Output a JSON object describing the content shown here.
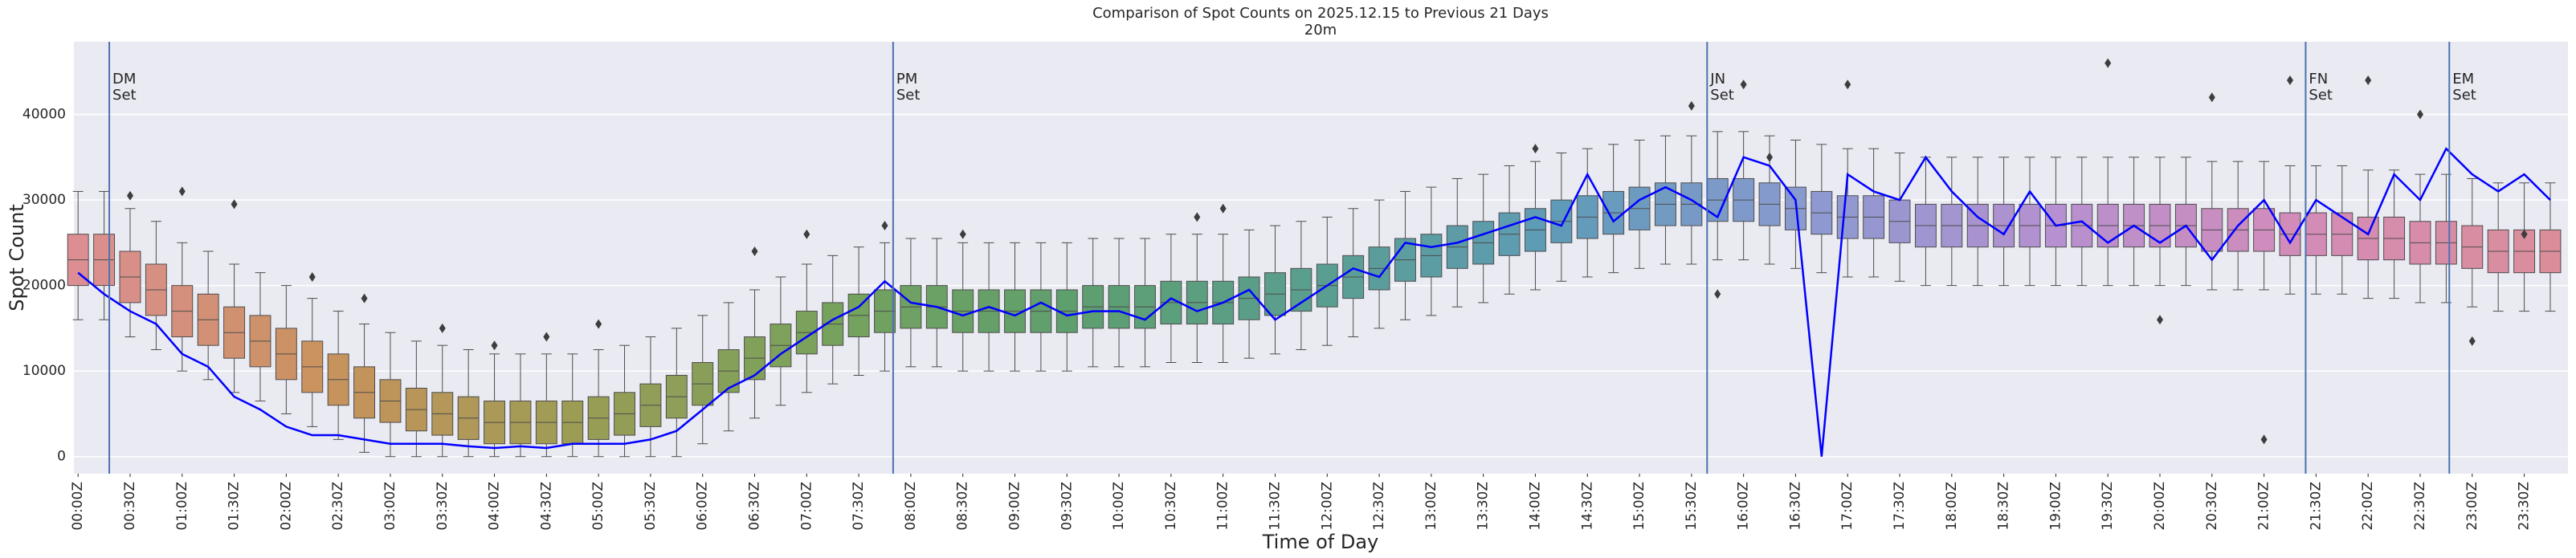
{
  "chart_data": {
    "type": "box",
    "title": "Comparison of Spot Counts on 2025.12.15 to Previous 21 Days",
    "subtitle": "20m",
    "xlabel": "Time of Day",
    "ylabel": "Spot Count",
    "xlim": [
      -0.04,
      23.92
    ],
    "ylim": [
      -2000,
      48500
    ],
    "yticks": [
      0,
      10000,
      20000,
      30000,
      40000
    ],
    "grid": true,
    "xticks": [
      {
        "value": 0,
        "label": "00:00Z"
      },
      {
        "value": 0.5,
        "label": "00:30Z"
      },
      {
        "value": 1,
        "label": "01:00Z"
      },
      {
        "value": 1.5,
        "label": "01:30Z"
      },
      {
        "value": 2,
        "label": "02:00Z"
      },
      {
        "value": 2.5,
        "label": "02:30Z"
      },
      {
        "value": 3,
        "label": "03:00Z"
      },
      {
        "value": 3.5,
        "label": "03:30Z"
      },
      {
        "value": 4,
        "label": "04:00Z"
      },
      {
        "value": 4.5,
        "label": "04:30Z"
      },
      {
        "value": 5,
        "label": "05:00Z"
      },
      {
        "value": 5.5,
        "label": "05:30Z"
      },
      {
        "value": 6,
        "label": "06:00Z"
      },
      {
        "value": 6.5,
        "label": "06:30Z"
      },
      {
        "value": 7,
        "label": "07:00Z"
      },
      {
        "value": 7.5,
        "label": "07:30Z"
      },
      {
        "value": 8,
        "label": "08:00Z"
      },
      {
        "value": 8.5,
        "label": "08:30Z"
      },
      {
        "value": 9,
        "label": "09:00Z"
      },
      {
        "value": 9.5,
        "label": "09:30Z"
      },
      {
        "value": 10,
        "label": "10:00Z"
      },
      {
        "value": 10.5,
        "label": "10:30Z"
      },
      {
        "value": 11,
        "label": "11:00Z"
      },
      {
        "value": 11.5,
        "label": "11:30Z"
      },
      {
        "value": 12,
        "label": "12:00Z"
      },
      {
        "value": 12.5,
        "label": "12:30Z"
      },
      {
        "value": 13,
        "label": "13:00Z"
      },
      {
        "value": 13.5,
        "label": "13:30Z"
      },
      {
        "value": 14,
        "label": "14:00Z"
      },
      {
        "value": 14.5,
        "label": "14:30Z"
      },
      {
        "value": 15,
        "label": "15:00Z"
      },
      {
        "value": 15.5,
        "label": "15:30Z"
      },
      {
        "value": 16,
        "label": "16:00Z"
      },
      {
        "value": 16.5,
        "label": "16:30Z"
      },
      {
        "value": 17,
        "label": "17:00Z"
      },
      {
        "value": 17.5,
        "label": "17:30Z"
      },
      {
        "value": 18,
        "label": "18:00Z"
      },
      {
        "value": 18.5,
        "label": "18:30Z"
      },
      {
        "value": 19,
        "label": "19:00Z"
      },
      {
        "value": 19.5,
        "label": "19:30Z"
      },
      {
        "value": 20,
        "label": "20:00Z"
      },
      {
        "value": 20.5,
        "label": "20:30Z"
      },
      {
        "value": 21,
        "label": "21:00Z"
      },
      {
        "value": 21.5,
        "label": "21:30Z"
      },
      {
        "value": 22,
        "label": "22:00Z"
      },
      {
        "value": 22.5,
        "label": "22:30Z"
      },
      {
        "value": 23,
        "label": "23:00Z"
      },
      {
        "value": 23.5,
        "label": "23:30Z"
      }
    ],
    "x": [
      0,
      0.25,
      0.5,
      0.75,
      1,
      1.25,
      1.5,
      1.75,
      2,
      2.25,
      2.5,
      2.75,
      3,
      3.25,
      3.5,
      3.75,
      4,
      4.25,
      4.5,
      4.75,
      5,
      5.25,
      5.5,
      5.75,
      6,
      6.25,
      6.5,
      6.75,
      7,
      7.25,
      7.5,
      7.75,
      8,
      8.25,
      8.5,
      8.75,
      9,
      9.25,
      9.5,
      9.75,
      10,
      10.25,
      10.5,
      10.75,
      11,
      11.25,
      11.5,
      11.75,
      12,
      12.25,
      12.5,
      12.75,
      13,
      13.25,
      13.5,
      13.75,
      14,
      14.25,
      14.5,
      14.75,
      15,
      15.25,
      15.5,
      15.75,
      16,
      16.25,
      16.5,
      16.75,
      17,
      17.25,
      17.5,
      17.75,
      18,
      18.25,
      18.5,
      18.75,
      19,
      19.25,
      19.5,
      19.75,
      20,
      20.25,
      20.5,
      20.75,
      21,
      21.25,
      21.5,
      21.75,
      22,
      22.25,
      22.5,
      22.75,
      23,
      23.25,
      23.5,
      23.75
    ],
    "palette": [
      "#dc8e93",
      "#c9935c",
      "#9c9c55",
      "#78a25c",
      "#5e9f6e",
      "#5a9e90",
      "#5f9bb8",
      "#8b9ad0",
      "#b690d0",
      "#d38cb8",
      "#db8d9a"
    ],
    "box_edge_color": "#4d4d4d",
    "boxes": {
      "median": [
        23000,
        23000,
        21000,
        19500,
        17000,
        16000,
        14500,
        13500,
        12000,
        10500,
        9000,
        7500,
        6500,
        5500,
        5000,
        4500,
        4000,
        4000,
        4000,
        4000,
        4500,
        5000,
        6000,
        7000,
        8500,
        10000,
        11500,
        13000,
        14500,
        15500,
        16500,
        17000,
        17500,
        17500,
        17000,
        17000,
        17000,
        17000,
        17000,
        17500,
        17500,
        17500,
        18000,
        18000,
        18000,
        18500,
        19000,
        19500,
        20000,
        21000,
        22000,
        23000,
        23500,
        24500,
        25000,
        26000,
        26500,
        27500,
        28000,
        28500,
        29000,
        29500,
        29500,
        30000,
        30000,
        29500,
        29000,
        28500,
        28000,
        28000,
        27500,
        27000,
        27000,
        27000,
        27000,
        27000,
        27000,
        27000,
        27000,
        27000,
        27000,
        27000,
        26500,
        26500,
        26500,
        26000,
        26000,
        26000,
        25500,
        25500,
        25000,
        25000,
        24500,
        24000,
        24000,
        24000
      ],
      "q1": [
        20000,
        20000,
        18000,
        16500,
        14000,
        13000,
        11500,
        10500,
        9000,
        7500,
        6000,
        4500,
        4000,
        3000,
        2500,
        2000,
        1500,
        1500,
        1500,
        1500,
        2000,
        2500,
        3500,
        4500,
        6000,
        7500,
        9000,
        10500,
        12000,
        13000,
        14000,
        14500,
        15000,
        15000,
        14500,
        14500,
        14500,
        14500,
        14500,
        15000,
        15000,
        15000,
        15500,
        15500,
        15500,
        16000,
        16500,
        17000,
        17500,
        18500,
        19500,
        20500,
        21000,
        22000,
        22500,
        23500,
        24000,
        25000,
        25500,
        26000,
        26500,
        27000,
        27000,
        27500,
        27500,
        27000,
        26500,
        26000,
        25500,
        25500,
        25000,
        24500,
        24500,
        24500,
        24500,
        24500,
        24500,
        24500,
        24500,
        24500,
        24500,
        24500,
        24000,
        24000,
        24000,
        23500,
        23500,
        23500,
        23000,
        23000,
        22500,
        22500,
        22000,
        21500,
        21500,
        21500
      ],
      "q3": [
        26000,
        26000,
        24000,
        22500,
        20000,
        19000,
        17500,
        16500,
        15000,
        13500,
        12000,
        10500,
        9000,
        8000,
        7500,
        7000,
        6500,
        6500,
        6500,
        6500,
        7000,
        7500,
        8500,
        9500,
        11000,
        12500,
        14000,
        15500,
        17000,
        18000,
        19000,
        19500,
        20000,
        20000,
        19500,
        19500,
        19500,
        19500,
        19500,
        20000,
        20000,
        20000,
        20500,
        20500,
        20500,
        21000,
        21500,
        22000,
        22500,
        23500,
        24500,
        25500,
        26000,
        27000,
        27500,
        28500,
        29000,
        30000,
        30500,
        31000,
        31500,
        32000,
        32000,
        32500,
        32500,
        32000,
        31500,
        31000,
        30500,
        30500,
        30000,
        29500,
        29500,
        29500,
        29500,
        29500,
        29500,
        29500,
        29500,
        29500,
        29500,
        29500,
        29000,
        29000,
        29000,
        28500,
        28500,
        28500,
        28000,
        28000,
        27500,
        27500,
        27000,
        26500,
        26500,
        26500
      ],
      "whislo": [
        16000,
        16000,
        14000,
        12500,
        10000,
        9000,
        7500,
        6500,
        5000,
        3500,
        2000,
        500,
        0,
        0,
        0,
        0,
        0,
        0,
        0,
        0,
        0,
        0,
        0,
        0,
        1500,
        3000,
        4500,
        6000,
        7500,
        8500,
        9500,
        10000,
        10500,
        10500,
        10000,
        10000,
        10000,
        10000,
        10000,
        10500,
        10500,
        10500,
        11000,
        11000,
        11000,
        11500,
        12000,
        12500,
        13000,
        14000,
        15000,
        16000,
        16500,
        17500,
        18000,
        19000,
        19500,
        20500,
        21000,
        21500,
        22000,
        22500,
        22500,
        23000,
        23000,
        22500,
        22000,
        21500,
        21000,
        21000,
        20500,
        20000,
        20000,
        20000,
        20000,
        20000,
        20000,
        20000,
        20000,
        20000,
        20000,
        20000,
        19500,
        19500,
        19500,
        19000,
        19000,
        19000,
        18500,
        18500,
        18000,
        18000,
        17500,
        17000,
        17000,
        17000
      ],
      "whishi": [
        31000,
        31000,
        29000,
        27500,
        25000,
        24000,
        22500,
        21500,
        20000,
        18500,
        17000,
        15500,
        14500,
        13500,
        13000,
        12500,
        12000,
        12000,
        12000,
        12000,
        12500,
        13000,
        14000,
        15000,
        16500,
        18000,
        19500,
        21000,
        22500,
        23500,
        24500,
        25000,
        25500,
        25500,
        25000,
        25000,
        25000,
        25000,
        25000,
        25500,
        25500,
        25500,
        26000,
        26000,
        26000,
        26500,
        27000,
        27500,
        28000,
        29000,
        30000,
        31000,
        31500,
        32500,
        33000,
        34000,
        34500,
        35500,
        36000,
        36500,
        37000,
        37500,
        37500,
        38000,
        38000,
        37500,
        37000,
        36500,
        36000,
        36000,
        35500,
        35000,
        35000,
        35000,
        35000,
        35000,
        35000,
        35000,
        35000,
        35000,
        35000,
        35000,
        34500,
        34500,
        34500,
        34000,
        34000,
        34000,
        33500,
        33500,
        33000,
        33000,
        32500,
        32000,
        32000,
        32000
      ]
    },
    "outliers": {
      "color": "#3d3d3d",
      "x": [
        0.5,
        1,
        1.5,
        2.25,
        2.75,
        3.5,
        4,
        4.5,
        5,
        6.5,
        7,
        7.75,
        8.5,
        10.75,
        11,
        14,
        15.5,
        16,
        17,
        19.5,
        20.5,
        21,
        21.25,
        22,
        22.5,
        23.5,
        23,
        20,
        15.75,
        16.25
      ],
      "y": [
        30500,
        31000,
        29500,
        21000,
        18500,
        15000,
        13000,
        14000,
        15500,
        24000,
        26000,
        27000,
        26000,
        28000,
        29000,
        36000,
        41000,
        43500,
        43500,
        46000,
        42000,
        2000,
        44000,
        44000,
        40000,
        26000,
        13500,
        16000,
        19000,
        35000
      ]
    },
    "line": {
      "color": "#0000ff",
      "values": [
        21500,
        19000,
        17000,
        15500,
        12000,
        10500,
        7000,
        5500,
        3500,
        2500,
        2500,
        2000,
        1500,
        1500,
        1500,
        1200,
        1000,
        1200,
        1000,
        1500,
        1500,
        1500,
        2000,
        3000,
        5500,
        8000,
        9500,
        12000,
        14000,
        16000,
        17500,
        20500,
        18000,
        17500,
        16500,
        17500,
        16500,
        18000,
        16500,
        17000,
        17000,
        16000,
        18500,
        17000,
        18000,
        19500,
        16000,
        18000,
        20000,
        22000,
        21000,
        25000,
        24500,
        25000,
        26000,
        27000,
        28000,
        27000,
        33000,
        27500,
        30000,
        31500,
        30000,
        28000,
        35000,
        34000,
        30000,
        0,
        33000,
        31000,
        30000,
        35000,
        31000,
        28000,
        26000,
        31000,
        27000,
        27500,
        25000,
        27000,
        25000,
        27000,
        23000,
        27000,
        30000,
        25000,
        30000,
        28000,
        26000,
        33000,
        30000,
        36000,
        33000,
        31000,
        33000,
        30000
      ]
    },
    "vline_color": "#4c72b0",
    "vlines": [
      {
        "x": 0.3,
        "lines": [
          "DM",
          "Set"
        ]
      },
      {
        "x": 7.83,
        "lines": [
          "PM",
          "Set"
        ]
      },
      {
        "x": 15.65,
        "lines": [
          "JN",
          "Set"
        ]
      },
      {
        "x": 21.4,
        "lines": [
          "FN",
          "Set"
        ]
      },
      {
        "x": 22.78,
        "lines": [
          "EM",
          "Set"
        ]
      }
    ]
  }
}
